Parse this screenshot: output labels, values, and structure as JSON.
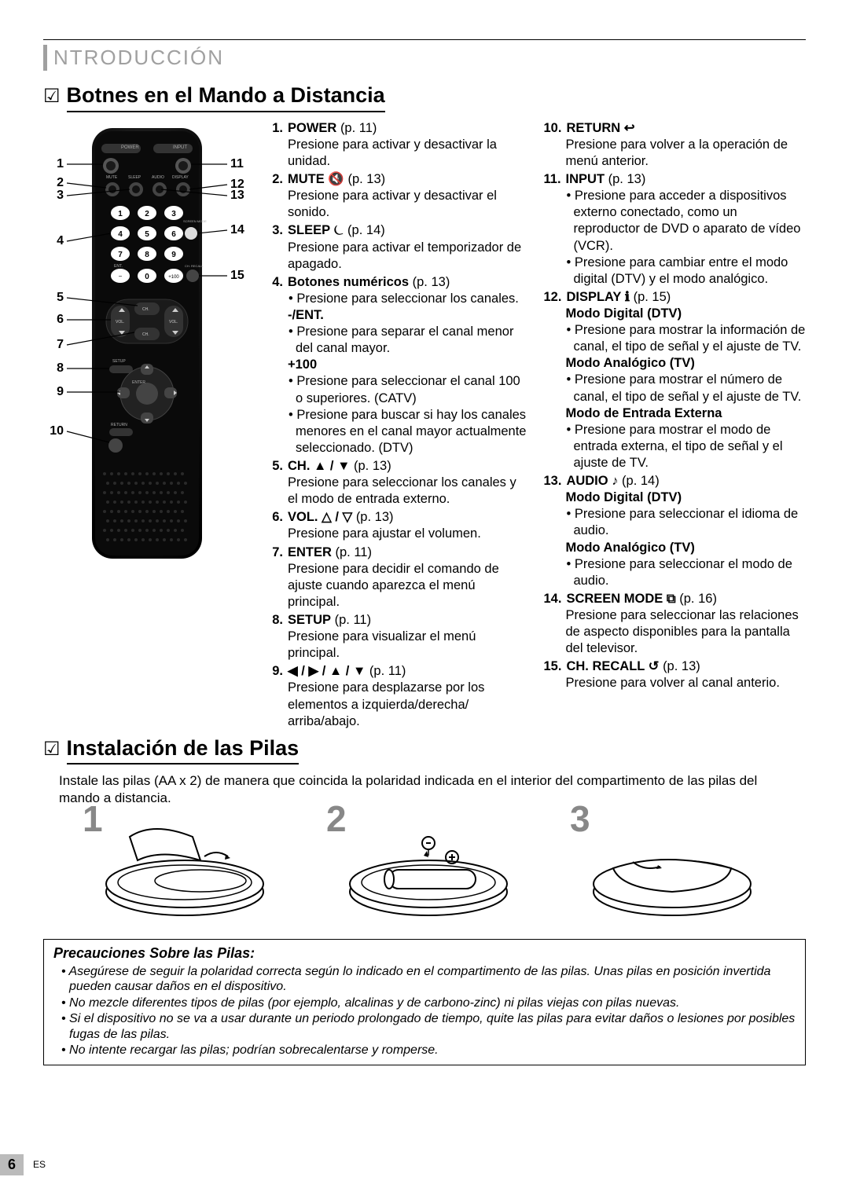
{
  "header": "NTRODUCCIÓN",
  "section1_title": "Botnes en el Mando a Distancia",
  "section2_title": "Instalación de las Pilas",
  "check_glyph": "☑",
  "callouts_left": [
    "1",
    "2",
    "3",
    "4",
    "5",
    "6",
    "7",
    "8",
    "9",
    "10"
  ],
  "callouts_right": [
    "11",
    "12",
    "13",
    "14",
    "15"
  ],
  "col1": [
    {
      "n": "1.",
      "label": "POWER",
      "page": "(p. 11)",
      "body": [
        "Presione para activar y desactivar la unidad."
      ]
    },
    {
      "n": "2.",
      "label": "MUTE ",
      "icon": "🔇",
      "page": "(p. 13)",
      "body": [
        "Presione para activar y desactivar el sonido."
      ]
    },
    {
      "n": "3.",
      "label": "SLEEP ",
      "icon": "⏾",
      "page": "(p. 14)",
      "body": [
        "Presione para activar el temporizador de apagado."
      ]
    },
    {
      "n": "4.",
      "label": "Botones numéricos",
      "page": "(p. 13)",
      "subs": [
        {
          "t": "Presione para seleccionar los canales."
        },
        {
          "head": "-/ENT."
        },
        {
          "t": "Presione para separar el canal menor del canal mayor."
        },
        {
          "head": "+100"
        },
        {
          "t": "Presione para seleccionar el canal 100 o superiores. (CATV)"
        },
        {
          "t": "Presione para buscar si hay los canales menores en el canal mayor actualmente seleccionado. (DTV)"
        }
      ]
    },
    {
      "n": "5.",
      "label": "CH. ▲ / ▼",
      "page": "(p. 13)",
      "body": [
        "Presione para seleccionar los canales y el modo de entrada externo."
      ]
    },
    {
      "n": "6.",
      "label": "VOL. △ / ▽",
      "page": "(p. 13)",
      "body": [
        "Presione para ajustar el volumen."
      ]
    },
    {
      "n": "7.",
      "label": "ENTER",
      "page": "(p. 11)",
      "body": [
        "Presione para decidir el comando de ajuste cuando aparezca el menú principal."
      ]
    },
    {
      "n": "8.",
      "label": "SETUP",
      "page": "(p. 11)",
      "body": [
        "Presione para visualizar el menú principal."
      ]
    },
    {
      "n": "9.",
      "label": "◀ / ▶ / ▲ / ▼",
      "page": "(p. 11)",
      "body": [
        "Presione para desplazarse por los elementos a izquierda/derecha/ arriba/abajo."
      ]
    }
  ],
  "col2": [
    {
      "n": "10.",
      "label": "RETURN ",
      "icon": "↩",
      "body": [
        "Presione para volver a la operación de menú anterior."
      ]
    },
    {
      "n": "11.",
      "label": "INPUT",
      "page": "(p. 13)",
      "subs": [
        {
          "t": "Presione para acceder a dispositivos externo conectado, como un reproductor de DVD o aparato de vídeo (VCR)."
        },
        {
          "t": "Presione para cambiar entre el modo digital (DTV) y el modo analógico."
        }
      ]
    },
    {
      "n": "12.",
      "label": "DISPLAY ",
      "icon": "ℹ",
      "page": "(p. 15)",
      "subs": [
        {
          "head": "Modo Digital (DTV)"
        },
        {
          "t": "Presione para mostrar la información de canal, el tipo de señal y el ajuste de TV."
        },
        {
          "head": "Modo Analógico (TV)"
        },
        {
          "t": "Presione para mostrar el número de canal, el tipo de señal y el ajuste de TV."
        },
        {
          "head": "Modo de Entrada Externa"
        },
        {
          "t": "Presione para mostrar el modo de entrada externa, el tipo de señal y el ajuste de TV."
        }
      ]
    },
    {
      "n": "13.",
      "label": "AUDIO ",
      "icon": "♪",
      "page": "(p. 14)",
      "subs": [
        {
          "head": "Modo Digital (DTV)"
        },
        {
          "t": "Presione para seleccionar el idioma de audio."
        },
        {
          "head": "Modo Analógico (TV)"
        },
        {
          "t": "Presione para seleccionar el modo de audio."
        }
      ]
    },
    {
      "n": "14.",
      "label": "SCREEN MODE ",
      "icon": "⧉",
      "page": "(p. 16)",
      "body": [
        "Presione para seleccionar las relaciones de aspecto disponibles para la pantalla del televisor."
      ]
    },
    {
      "n": "15.",
      "label": "CH. RECALL ",
      "icon": "↺",
      "page": "(p. 13)",
      "body": [
        "Presione para volver al canal anterio."
      ]
    }
  ],
  "pilas_intro": "Instale las pilas (AA x 2) de manera que coincida la polaridad indicada en el interior del compartimento de las pilas del mando a distancia.",
  "battery_nums": [
    "1",
    "2",
    "3"
  ],
  "prec_title": "Precauciones Sobre las Pilas:",
  "precautions": [
    "Asegúrese de seguir la polaridad correcta según lo indicado en el compartimento de las pilas. Unas pilas en posición invertida pueden causar daños en el dispositivo.",
    "No mezcle diferentes tipos de pilas (por ejemplo, alcalinas y de carbono-zinc) ni pilas viejas con pilas nuevas.",
    "Si el dispositivo no se va a usar durante un periodo prolongado de tiempo, quite las pilas para evitar daños o lesiones por posibles fugas de las pilas.",
    "No intente recargar las pilas; podrían sobrecalentarse y romperse."
  ],
  "page_number": "6",
  "es": "ES",
  "remote_labels": {
    "power": "POWER",
    "input": "INPUT",
    "mute": "MUTE",
    "sleep": "SLEEP",
    "audio": "AUDIO",
    "display": "DISPLAY",
    "screen": "SCREEN MODE",
    "ent": "ENT.",
    "chrecall": "CH. RECALL",
    "ch": "CH.",
    "vol": "VOL.",
    "setup": "SETUP",
    "enter": "ENTER",
    "return": "RETURN",
    "plus100": "+100"
  }
}
